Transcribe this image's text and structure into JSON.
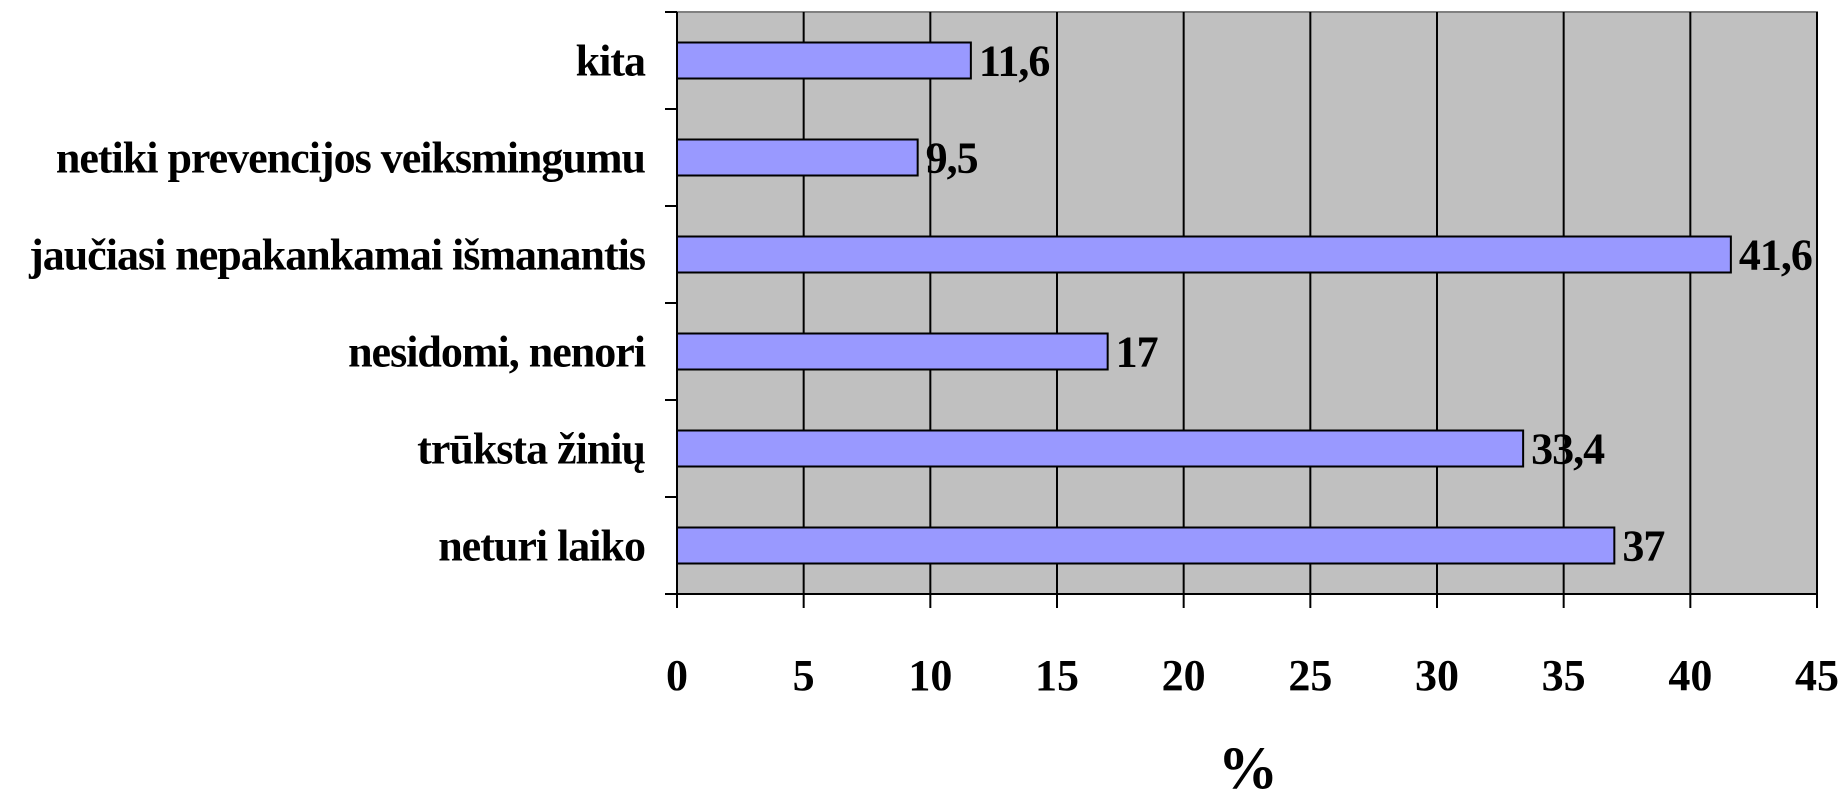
{
  "chart_data": {
    "type": "bar",
    "orientation": "horizontal",
    "categories": [
      "kita",
      "netiki prevencijos veiksmingumu",
      "jaučiasi nepakankamai išmanantis",
      "nesidomi, nenori",
      "trūksta žinių",
      "neturi laiko"
    ],
    "values": [
      11.6,
      9.5,
      41.6,
      17,
      33.4,
      37
    ],
    "value_labels": [
      "11,6",
      "9,5",
      "41,6",
      "17",
      "33,4",
      "37"
    ],
    "xlabel": "%",
    "ylabel": "",
    "xlim": [
      0,
      45
    ],
    "xticks": [
      0,
      5,
      10,
      15,
      20,
      25,
      30,
      35,
      40,
      45
    ],
    "grid": "vertical",
    "legend": "none",
    "colors": {
      "bar": "#9999ff",
      "plot_background": "#c0c0c0",
      "gridline": "#000000",
      "outline": "#000000"
    }
  }
}
